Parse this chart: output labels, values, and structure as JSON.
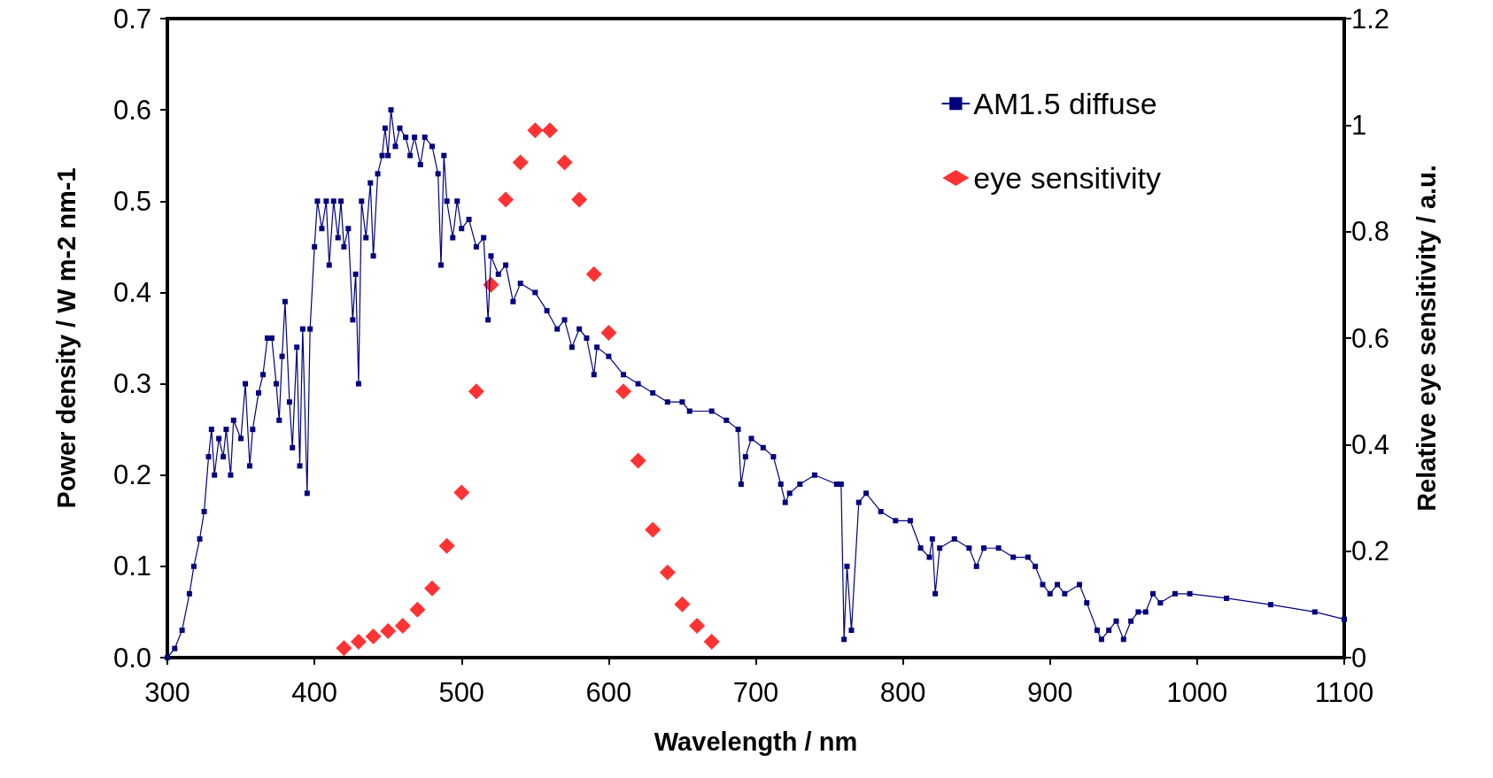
{
  "chart_data": {
    "type": "line",
    "xlabel": "Wavelength / nm",
    "ylabel": "Power density / W m-2 nm-1",
    "y2label": "Relative eye sensitivity / a.u.",
    "xlim": [
      300,
      1100
    ],
    "xticks": [
      300,
      400,
      500,
      600,
      700,
      800,
      900,
      1000,
      1100
    ],
    "ylim": [
      0,
      0.7
    ],
    "yticks": [
      {
        "value": 0,
        "label": "0.0"
      },
      0.1,
      0.2,
      0.3,
      0.4,
      0.5,
      0.6,
      0.7
    ],
    "y2lim": [
      0,
      1.2
    ],
    "y2ticks": [
      0,
      0.2,
      0.4,
      0.6,
      0.8,
      1,
      1.2
    ],
    "grid": false,
    "legend": "top right",
    "series": [
      {
        "name": "AM1.5 diffuse",
        "color": "#000080",
        "marker": "square",
        "line_style": "solid",
        "x": [
          300,
          305,
          310,
          315,
          318,
          322,
          325,
          328,
          330,
          332,
          335,
          338,
          340,
          343,
          345,
          350,
          353,
          356,
          358,
          362,
          365,
          368,
          371,
          374,
          376,
          378,
          380,
          383,
          385,
          388,
          390,
          392,
          395,
          397,
          400,
          402,
          405,
          408,
          410,
          413,
          416,
          418,
          420,
          423,
          426,
          428,
          430,
          432,
          435,
          438,
          440,
          443,
          446,
          448,
          450,
          452,
          455,
          458,
          462,
          465,
          468,
          472,
          475,
          480,
          484,
          486,
          488,
          490,
          494,
          497,
          500,
          505,
          510,
          515,
          518,
          520,
          525,
          530,
          535,
          540,
          550,
          558,
          565,
          570,
          575,
          580,
          585,
          590,
          592,
          600,
          610,
          620,
          630,
          640,
          650,
          655,
          670,
          680,
          688,
          690,
          693,
          697,
          705,
          712,
          717,
          720,
          723,
          730,
          740,
          755,
          758,
          760,
          762,
          765,
          770,
          775,
          785,
          795,
          805,
          812,
          818,
          820,
          822,
          825,
          835,
          845,
          850,
          855,
          865,
          875,
          885,
          890,
          895,
          900,
          905,
          910,
          920,
          925,
          932,
          935,
          940,
          945,
          950,
          955,
          960,
          965,
          970,
          975,
          985,
          995,
          1020,
          1050,
          1080,
          1100
        ],
        "values": [
          0,
          0.01,
          0.03,
          0.07,
          0.1,
          0.13,
          0.16,
          0.22,
          0.25,
          0.2,
          0.24,
          0.22,
          0.25,
          0.2,
          0.26,
          0.24,
          0.3,
          0.21,
          0.25,
          0.29,
          0.31,
          0.35,
          0.35,
          0.3,
          0.26,
          0.33,
          0.39,
          0.28,
          0.23,
          0.34,
          0.21,
          0.36,
          0.18,
          0.36,
          0.45,
          0.5,
          0.47,
          0.5,
          0.43,
          0.5,
          0.46,
          0.5,
          0.45,
          0.47,
          0.37,
          0.42,
          0.3,
          0.5,
          0.46,
          0.52,
          0.44,
          0.53,
          0.55,
          0.58,
          0.55,
          0.6,
          0.56,
          0.58,
          0.57,
          0.55,
          0.57,
          0.54,
          0.57,
          0.56,
          0.53,
          0.43,
          0.55,
          0.5,
          0.46,
          0.5,
          0.47,
          0.48,
          0.45,
          0.46,
          0.37,
          0.44,
          0.42,
          0.43,
          0.39,
          0.41,
          0.4,
          0.38,
          0.36,
          0.37,
          0.34,
          0.36,
          0.35,
          0.31,
          0.34,
          0.33,
          0.31,
          0.3,
          0.29,
          0.28,
          0.28,
          0.27,
          0.27,
          0.26,
          0.25,
          0.19,
          0.22,
          0.24,
          0.23,
          0.22,
          0.19,
          0.17,
          0.18,
          0.19,
          0.2,
          0.19,
          0.19,
          0.02,
          0.1,
          0.03,
          0.17,
          0.18,
          0.16,
          0.15,
          0.15,
          0.12,
          0.11,
          0.13,
          0.07,
          0.12,
          0.13,
          0.12,
          0.1,
          0.12,
          0.12,
          0.11,
          0.11,
          0.1,
          0.08,
          0.07,
          0.08,
          0.07,
          0.08,
          0.06,
          0.03,
          0.02,
          0.03,
          0.04,
          0.02,
          0.04,
          0.05,
          0.05,
          0.07,
          0.06,
          0.07,
          0.07,
          0.065,
          0.058,
          0.05,
          0.042
        ]
      },
      {
        "name": "eye sensitivity",
        "type": "scatter",
        "axis": "y2",
        "color": "#ff0000",
        "marker": "diamond",
        "x": [
          420,
          430,
          440,
          450,
          460,
          470,
          480,
          490,
          500,
          510,
          520,
          530,
          540,
          550,
          560,
          570,
          580,
          590,
          600,
          610,
          620,
          630,
          640,
          650,
          660,
          670
        ],
        "values": [
          0.018,
          0.03,
          0.04,
          0.05,
          0.06,
          0.09,
          0.13,
          0.21,
          0.31,
          0.5,
          0.7,
          0.86,
          0.93,
          0.99,
          0.99,
          0.93,
          0.86,
          0.72,
          0.61,
          0.5,
          0.37,
          0.24,
          0.16,
          0.1,
          0.06,
          0.03
        ]
      }
    ]
  }
}
